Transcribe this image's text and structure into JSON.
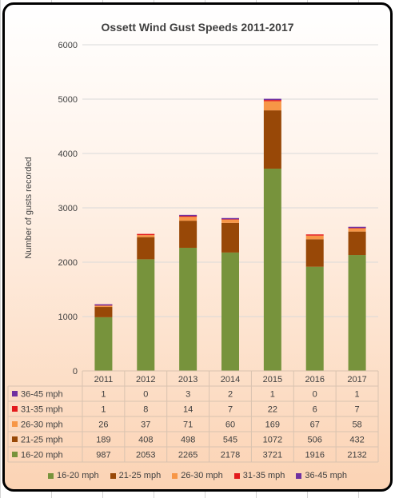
{
  "chart_data": {
    "type": "bar",
    "stacked": true,
    "title": "Ossett Wind Gust Speeds 2011-2017",
    "xlabel": "",
    "ylabel": "Number of gusts recorded",
    "ylim": [
      0,
      6000
    ],
    "yticks": [
      "0",
      "1000",
      "2000",
      "3000",
      "4000",
      "5000",
      "6000"
    ],
    "categories": [
      "2011",
      "2012",
      "2013",
      "2014",
      "2015",
      "2016",
      "2017"
    ],
    "grid": true,
    "legend_position": "bottom",
    "data_table": true,
    "series": [
      {
        "name": "16-20 mph",
        "color": "#77933c",
        "values": [
          987,
          2053,
          2265,
          2178,
          3721,
          1916,
          2132
        ]
      },
      {
        "name": "21-25 mph",
        "color": "#984807",
        "values": [
          189,
          408,
          498,
          545,
          1072,
          506,
          432
        ]
      },
      {
        "name": "26-30 mph",
        "color": "#f79646",
        "values": [
          26,
          37,
          71,
          60,
          169,
          67,
          58
        ]
      },
      {
        "name": "31-35 mph",
        "color": "#e31a1c",
        "values": [
          1,
          8,
          14,
          7,
          22,
          6,
          7
        ]
      },
      {
        "name": "36-45 mph",
        "color": "#7030a0",
        "values": [
          1,
          0,
          3,
          2,
          1,
          0,
          1
        ]
      }
    ]
  }
}
